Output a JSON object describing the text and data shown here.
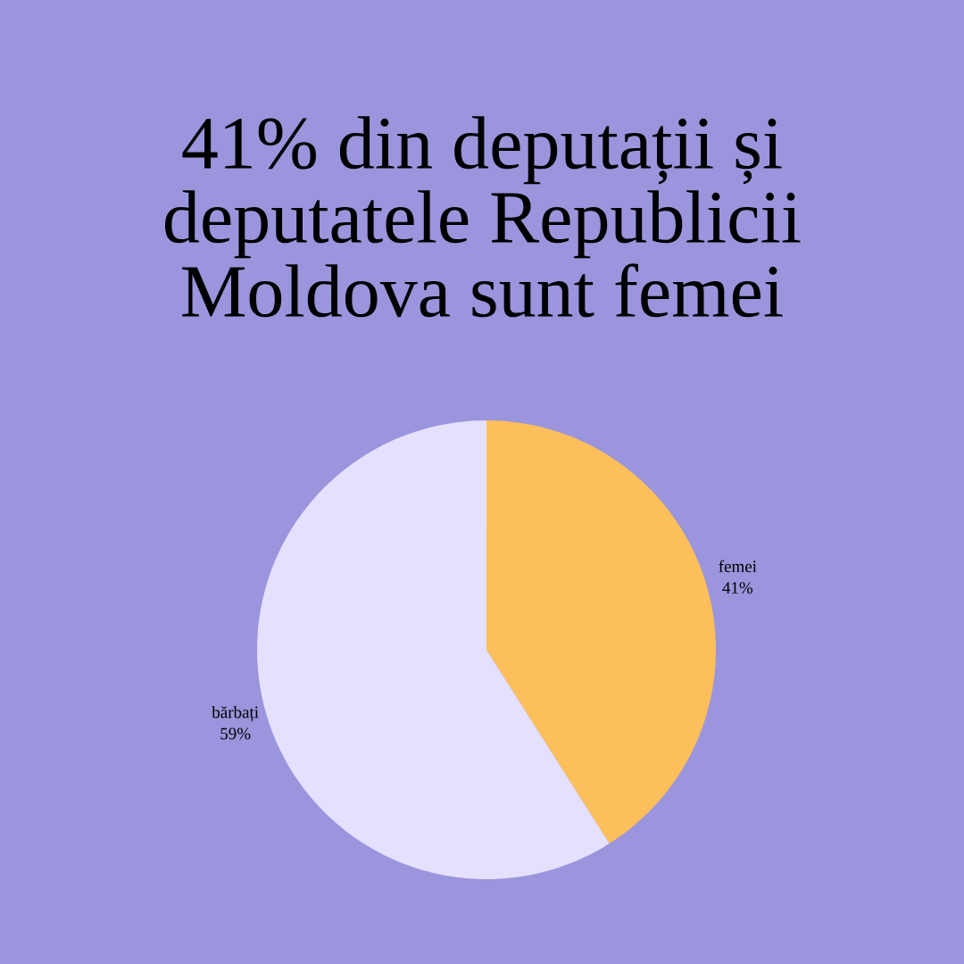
{
  "chart_data": {
    "type": "pie",
    "title": "41% din deputații și deputatele Republicii Moldova sunt femei",
    "categories": [
      "femei",
      "bărbați"
    ],
    "values": [
      41,
      59
    ],
    "colors": [
      "#fdbe5c",
      "#e4e0fe"
    ],
    "value_labels": [
      "41%",
      "59%"
    ]
  }
}
